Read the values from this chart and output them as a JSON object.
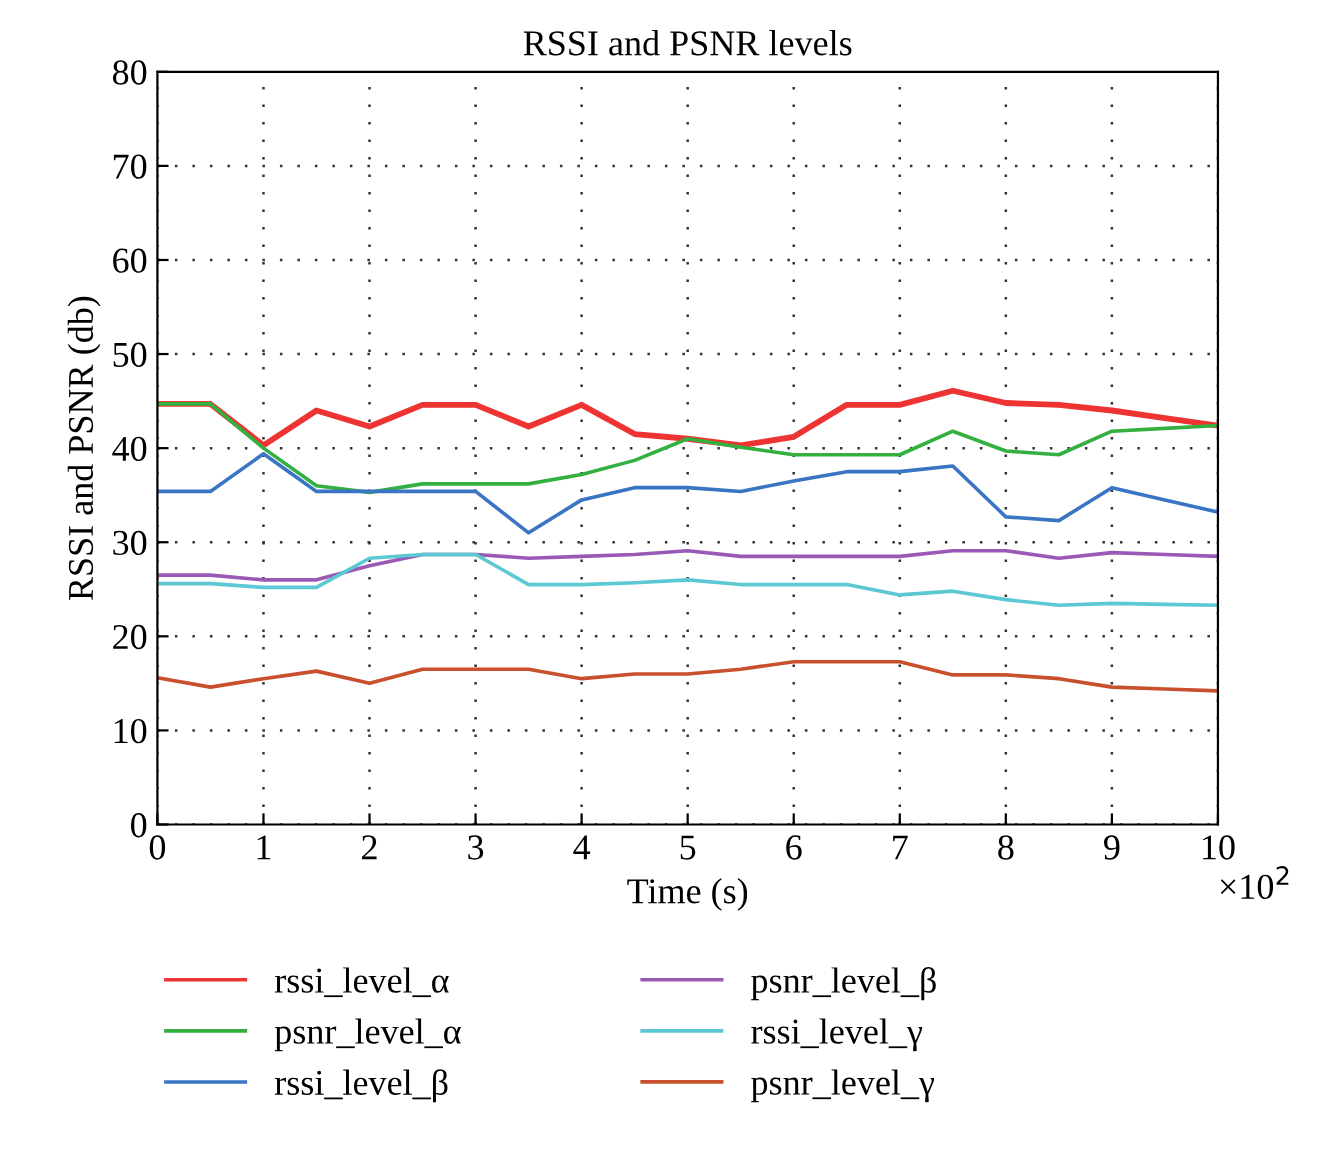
{
  "chart_data": {
    "type": "line",
    "title": "RSSI and PSNR levels",
    "xlabel": "Time (s)",
    "ylabel": "RSSI and PSNR (db)",
    "annotations": [
      "×10$^{2}$"
    ],
    "x": [
      0,
      0.5,
      1,
      1.5,
      2,
      2.5,
      3,
      3.5,
      4,
      4.5,
      5,
      5.5,
      6,
      6.5,
      7,
      7.5,
      8,
      8.5,
      9,
      9.5,
      10
    ],
    "series": [
      {
        "name": "rssi_level_α",
        "color": "#ee3333",
        "values": [
          44.7,
          44.7,
          40.3,
          44,
          42.3,
          44.6,
          44.6,
          42.3,
          44.6,
          41.5,
          41,
          40.3,
          41.2,
          44.6,
          44.6,
          46.1,
          44.8,
          44.6,
          44,
          43.2,
          42.4
        ]
      },
      {
        "name": "psnr_level_α",
        "color": "#33b040",
        "values": [
          44.7,
          44.7,
          40,
          36,
          35.3,
          36.2,
          36.2,
          36.2,
          37.2,
          38.7,
          41,
          40.1,
          39.3,
          39.3,
          39.3,
          41.8,
          39.7,
          39.3,
          41.8,
          42.1,
          42.4
        ]
      },
      {
        "name": "rssi_level_β",
        "color": "#3a75c4",
        "values": [
          35.4,
          35.4,
          39.4,
          35.4,
          35.4,
          35.4,
          35.4,
          31,
          34.5,
          35.8,
          35.8,
          35.4,
          36.5,
          37.5,
          37.5,
          38.1,
          32.7,
          32.3,
          35.8,
          34.5,
          33.2
        ]
      },
      {
        "name": "psnr_level_β",
        "color": "#9b59b6",
        "values": [
          26.5,
          26.5,
          26,
          26,
          27.5,
          28.7,
          28.7,
          28.3,
          28.5,
          28.7,
          29.1,
          28.5,
          28.5,
          28.5,
          28.5,
          29.1,
          29.1,
          28.3,
          28.9,
          28.7,
          28.5
        ]
      },
      {
        "name": "rssi_level_γ",
        "color": "#5bc8d4",
        "values": [
          25.6,
          25.6,
          25.2,
          25.2,
          28.3,
          28.7,
          28.7,
          25.5,
          25.5,
          25.7,
          26,
          25.5,
          25.5,
          25.5,
          24.4,
          24.8,
          23.9,
          23.3,
          23.5,
          23.4,
          23.3
        ]
      },
      {
        "name": "psnr_level_γ",
        "color": "#c8502d",
        "values": [
          15.6,
          14.6,
          15.5,
          16.3,
          15,
          16.5,
          16.5,
          16.5,
          15.5,
          16,
          16,
          16.5,
          17.3,
          17.3,
          17.3,
          15.9,
          15.9,
          15.5,
          14.6,
          14.4,
          14.2
        ]
      }
    ],
    "xlim": [
      0,
      10
    ],
    "xticks": [
      0,
      1,
      2,
      3,
      4,
      5,
      6,
      7,
      8,
      9,
      10
    ],
    "ylim": [
      0,
      80
    ],
    "yticks": [
      0,
      10,
      20,
      30,
      40,
      50,
      60,
      70,
      80
    ],
    "grid": true,
    "legend": "bottom",
    "marker": "none",
    "line_style": "solid"
  }
}
